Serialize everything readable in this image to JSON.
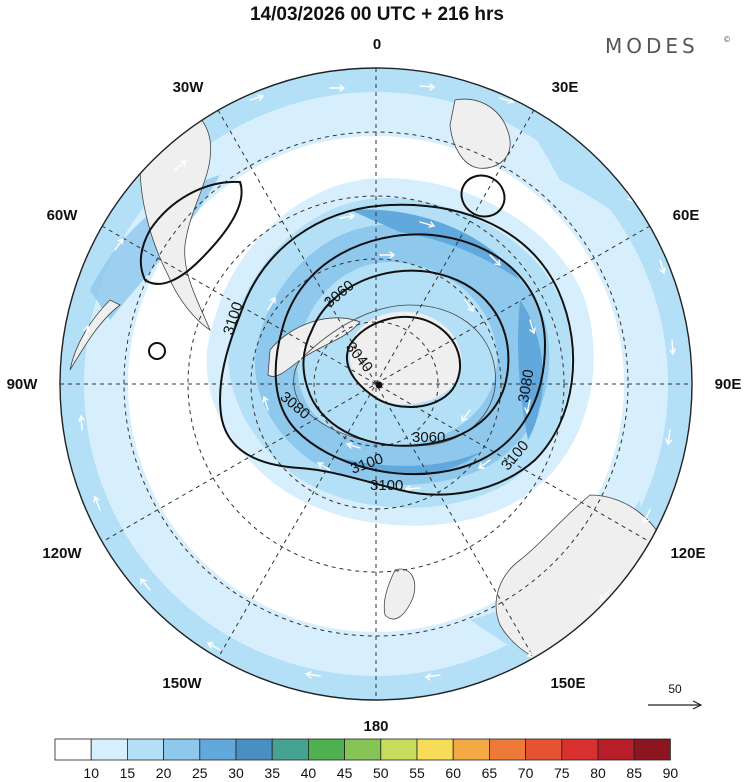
{
  "header": {
    "title": "14/03/2026  00 UTC  + 216 hrs",
    "brand": "MODES",
    "brand_mark": "©"
  },
  "map": {
    "projection": "south-polar-stereographic",
    "longitude_labels": {
      "top": "0",
      "top_right": "30E",
      "right_upper": "60E",
      "right": "90E",
      "right_lower": "120E",
      "bottom_right": "150E",
      "bottom": "180",
      "bottom_left": "150W",
      "left_lower": "120W",
      "left": "90W",
      "left_upper": "60W",
      "top_left": "30W"
    },
    "contour_labels": [
      {
        "id": "c3060a",
        "text": "3060"
      },
      {
        "id": "c3040",
        "text": "3040"
      },
      {
        "id": "c3080a",
        "text": "3080"
      },
      {
        "id": "c3100a",
        "text": "3100"
      },
      {
        "id": "c3060b",
        "text": "3060"
      },
      {
        "id": "c3080b",
        "text": "3080"
      },
      {
        "id": "c3100b",
        "text": "3100"
      },
      {
        "id": "c3100c",
        "text": "3100"
      },
      {
        "id": "c3100d",
        "text": "3100"
      }
    ],
    "colors": {
      "land": "#efefef",
      "shade_10": "#ffffff",
      "shade_15": "#d7effd",
      "shade_20": "#b3e0f7",
      "shade_25": "#8ec8ec",
      "shade_30": "#61a8dc",
      "contour": "#111111",
      "wind_arrow": "#ffffff"
    }
  },
  "reference_vector": {
    "label": "50"
  },
  "colorbar": {
    "levels": [
      "10",
      "15",
      "20",
      "25",
      "30",
      "35",
      "40",
      "45",
      "50",
      "55",
      "60",
      "65",
      "70",
      "75",
      "80",
      "85",
      "90"
    ],
    "colors": [
      "#ffffff",
      "#d7effd",
      "#b3e0f7",
      "#8ec8ec",
      "#61a8dc",
      "#4a8fc3",
      "#45a391",
      "#4fb04f",
      "#86c455",
      "#c6dd5c",
      "#f7dc57",
      "#f3a946",
      "#ee7a3a",
      "#e65333",
      "#d8302e",
      "#b81d2a",
      "#8c1620"
    ]
  }
}
